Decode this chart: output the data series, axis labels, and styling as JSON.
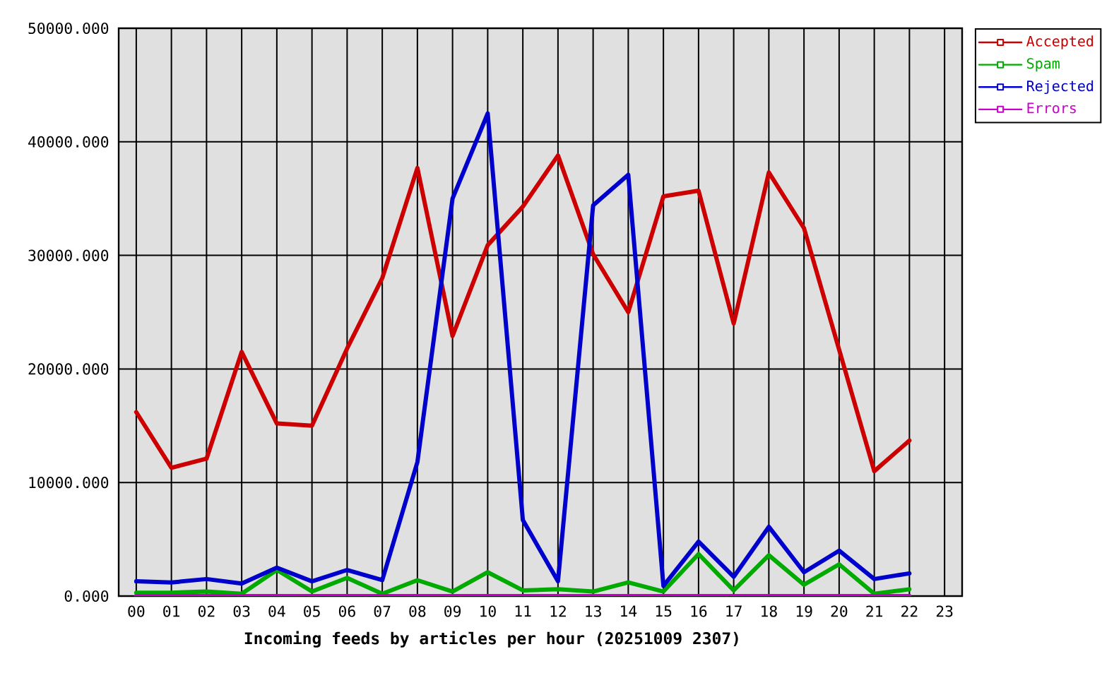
{
  "chart_data": {
    "type": "line",
    "xlabel": "Incoming feeds by articles per hour (20251009 2307)",
    "categories": [
      "00",
      "01",
      "02",
      "03",
      "04",
      "05",
      "06",
      "07",
      "08",
      "09",
      "10",
      "11",
      "12",
      "13",
      "14",
      "15",
      "16",
      "17",
      "18",
      "19",
      "20",
      "21",
      "22",
      "23"
    ],
    "series": [
      {
        "name": "Accepted",
        "color": "#cc0000",
        "values": [
          16200,
          11300,
          12100,
          21500,
          15200,
          15000,
          21800,
          28000,
          37700,
          22900,
          30900,
          34300,
          38800,
          30100,
          25000,
          35200,
          35700,
          24000,
          37300,
          32400,
          21700,
          11000,
          13700,
          null
        ]
      },
      {
        "name": "Spam",
        "color": "#00aa00",
        "values": [
          300,
          300,
          400,
          200,
          2300,
          400,
          1600,
          200,
          1400,
          400,
          2100,
          500,
          600,
          400,
          1200,
          400,
          3700,
          500,
          3600,
          1000,
          2800,
          200,
          600,
          null
        ]
      },
      {
        "name": "Rejected",
        "color": "#0000cc",
        "values": [
          1300,
          1200,
          1500,
          1100,
          2500,
          1300,
          2300,
          1400,
          11800,
          35000,
          42500,
          6700,
          1300,
          34400,
          37100,
          900,
          4800,
          1700,
          6100,
          2100,
          4000,
          1500,
          2000,
          null
        ]
      },
      {
        "name": "Errors",
        "color": "#cc00cc",
        "values": [
          0,
          0,
          0,
          0,
          0,
          0,
          0,
          0,
          0,
          0,
          0,
          0,
          0,
          0,
          0,
          0,
          0,
          0,
          0,
          0,
          0,
          0,
          0,
          null
        ]
      }
    ],
    "ylim": [
      0,
      50000
    ],
    "yticks": [
      {
        "value": 0,
        "label": "0.000"
      },
      {
        "value": 10000,
        "label": "10000.000"
      },
      {
        "value": 20000,
        "label": "20000.000"
      },
      {
        "value": 30000,
        "label": "30000.000"
      },
      {
        "value": 40000,
        "label": "40000.000"
      },
      {
        "value": 50000,
        "label": "50000.000"
      }
    ],
    "grid": true,
    "legend": "right",
    "marker": "none",
    "line_style": "solid"
  }
}
